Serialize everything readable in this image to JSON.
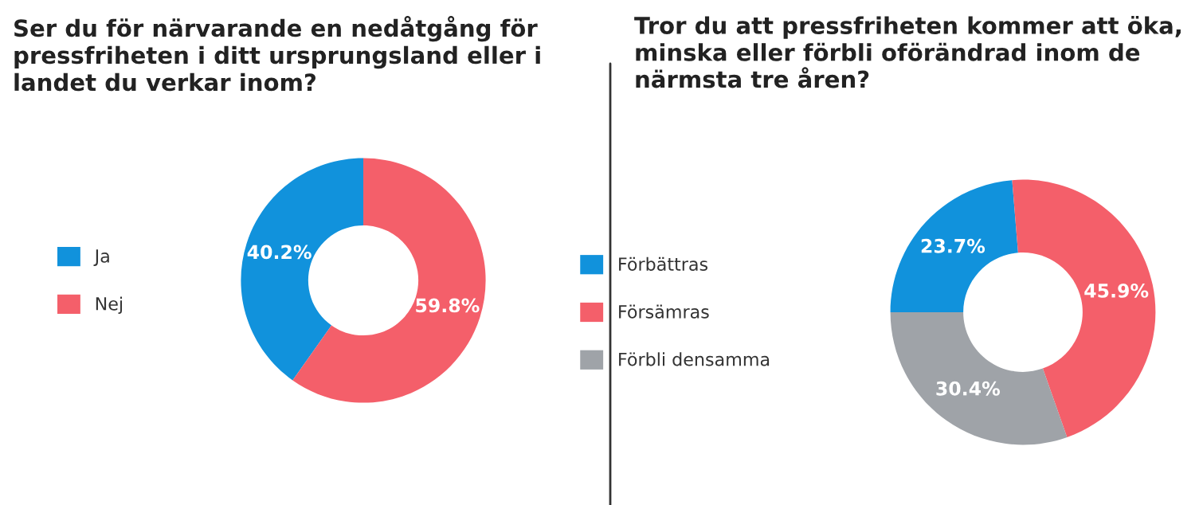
{
  "chart_data": [
    {
      "type": "donut",
      "title": "Ser du för närvarande en nedåtgång för\npressfriheten i ditt ursprungsland eller i\nlandet du verkar inom?",
      "categories": [
        "Ja",
        "Nej"
      ],
      "values": [
        40.2,
        59.8
      ],
      "colors": [
        "#1192dc",
        "#f45f6a"
      ],
      "value_labels": [
        "40.2%",
        "59.8%"
      ],
      "legend": "left"
    },
    {
      "type": "donut",
      "title": "Tror du att pressfriheten kommer att öka,\nminska eller förbli oförändrad inom de\nnärmsta tre åren?",
      "categories": [
        "Förbättras",
        "Försämras",
        "Förbli densamma"
      ],
      "values": [
        23.7,
        45.9,
        30.4
      ],
      "colors": [
        "#1192dc",
        "#f45f6a",
        "#9fa3a8"
      ],
      "value_labels": [
        "23.7%",
        "45.9%",
        "30.4%"
      ],
      "legend": "left"
    }
  ]
}
